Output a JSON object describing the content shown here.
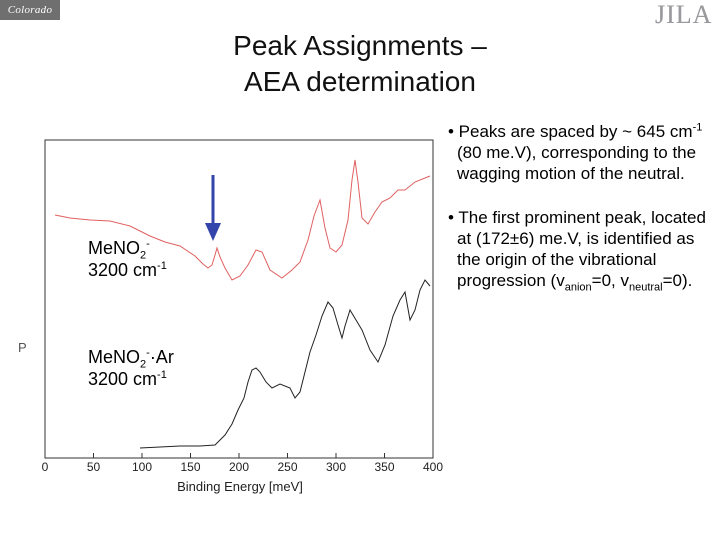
{
  "header": {
    "logo_left_text": "Colorado",
    "logo_right_text": "JILA",
    "accent_color": "#9ea6d6"
  },
  "title": {
    "line1": "Peak Assignments –",
    "line2": "AEA determination"
  },
  "plot": {
    "xlabel": "Binding Energy [meV]",
    "xlim": [
      0,
      400
    ],
    "x_ticks": [
      "0",
      "50",
      "100",
      "150",
      "200",
      "250",
      "300",
      "350",
      "400"
    ],
    "series_colors": {
      "top": "#e06060",
      "bottom": "#222222"
    },
    "arrow_color": "#3344aa",
    "arrow_at_mev": 172,
    "ylabel_partial": "P",
    "label_top": {
      "species": "MeNO",
      "sub": "2",
      "sup": "-",
      "wavenumber": "3200 cm",
      "unit_sup": "-1"
    },
    "label_bottom": {
      "species": "MeNO",
      "sub": "2",
      "sup": "-",
      "tail": "·Ar",
      "wavenumber": "3200 cm",
      "unit_sup": "-1"
    }
  },
  "bullets": {
    "b1": {
      "t1": "• Peaks are spaced by ~ 645 cm",
      "s1": "-1",
      "t2": " (80 me.V), corresponding to the wagging motion of the neutral."
    },
    "b2": {
      "t1": "• The first prominent peak, located at (172±6) me.V, is identified as the origin of the vibrational progression (v",
      "s1": "anion",
      "t2": "=0, v",
      "s2": "neutral",
      "t3": "=0)."
    }
  }
}
